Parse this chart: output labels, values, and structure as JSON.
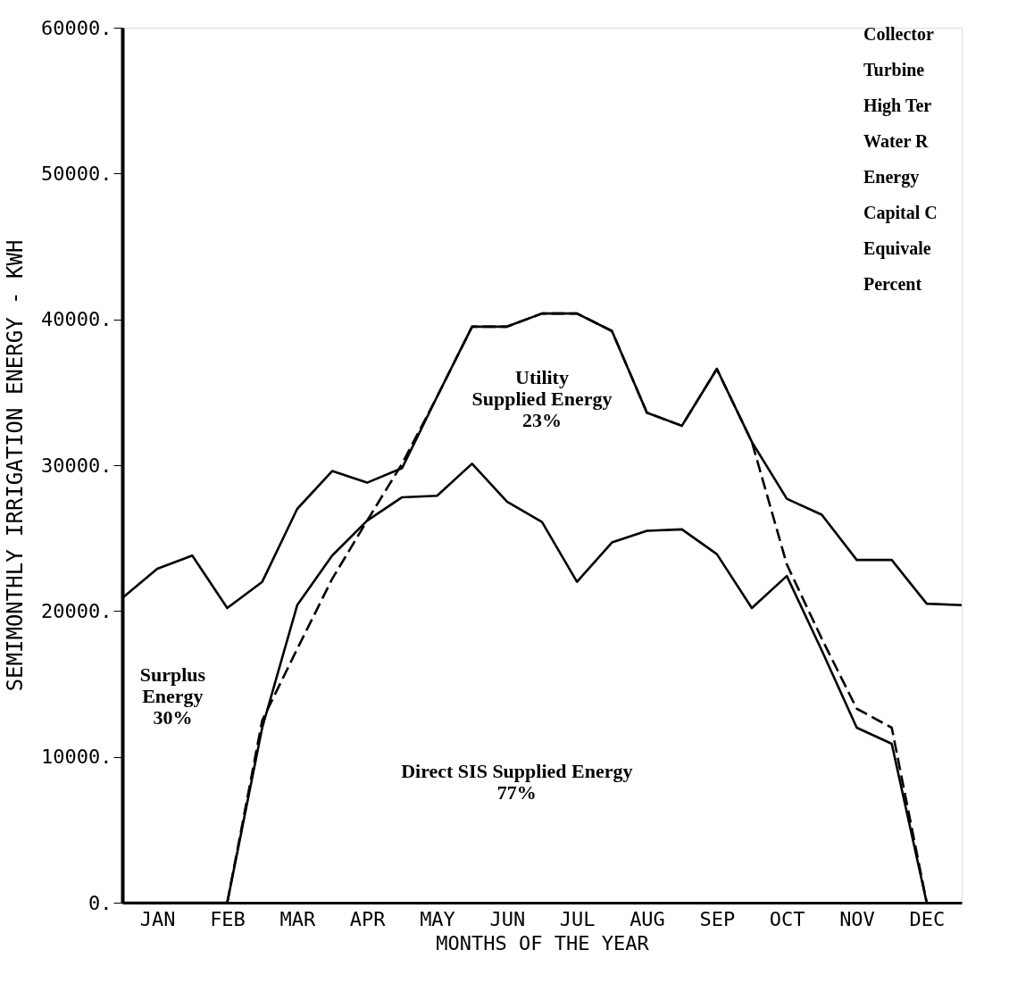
{
  "chart_data": {
    "type": "line",
    "xlabel": "MONTHS OF THE YEAR",
    "ylabel": "SEMIMONTHLY IRRIGATION ENERGY  -  KWH",
    "categories": [
      null,
      "JAN",
      null,
      "FEB",
      null,
      "MAR",
      null,
      "APR",
      null,
      "MAY",
      null,
      "JUN",
      null,
      "JUL",
      null,
      "AUG",
      null,
      "SEP",
      null,
      "OCT",
      null,
      "NOV",
      null,
      "DEC",
      null
    ],
    "series": [
      {
        "color": "#000000",
        "line_style": "solid",
        "values": [
          20900,
          22900,
          23800,
          20200,
          22000,
          27000,
          29600,
          28800,
          29800,
          34700,
          39500,
          39500,
          40400,
          40400,
          39200,
          33600,
          32700,
          36600,
          31600,
          27700,
          26600,
          23500,
          23500,
          20500,
          20400
        ]
      },
      {
        "color": "#000000",
        "line_style": "solid",
        "values": [
          0,
          0,
          0,
          0,
          12000,
          20400,
          23800,
          26200,
          27800,
          27900,
          30100,
          27500,
          26100,
          22000,
          24700,
          25500,
          25600,
          23900,
          20200,
          22400,
          17300,
          12000,
          10900,
          0,
          null
        ]
      },
      {
        "color": "#000000",
        "line_style": "dashed",
        "values": [
          null,
          null,
          null,
          0,
          12500,
          17400,
          22200,
          26200,
          30100,
          34700,
          39500,
          39500,
          40400,
          40400,
          39200,
          33600,
          32700,
          36600,
          31600,
          23200,
          18100,
          13300,
          12000,
          0,
          null
        ]
      }
    ],
    "ylim": [
      0,
      60000
    ],
    "yticks": [
      {
        "value": 0,
        "label": "0."
      },
      {
        "value": 10000,
        "label": "10000."
      },
      {
        "value": 20000,
        "label": "20000."
      },
      {
        "value": 30000,
        "label": "30000."
      },
      {
        "value": 40000,
        "label": "40000."
      },
      {
        "value": 50000,
        "label": "50000."
      },
      {
        "value": 60000,
        "label": "60000."
      }
    ],
    "grid": false,
    "marker": "none",
    "annotations": [
      "Utility\nSupplied Energy\n23%",
      "Surplus\nEnergy\n30%",
      "Direct SIS Supplied Energy\n77%",
      "Collector",
      "Turbine",
      "High Ter",
      "Water R",
      "Energy",
      "Capital C",
      "Equivale",
      "Percent"
    ]
  }
}
